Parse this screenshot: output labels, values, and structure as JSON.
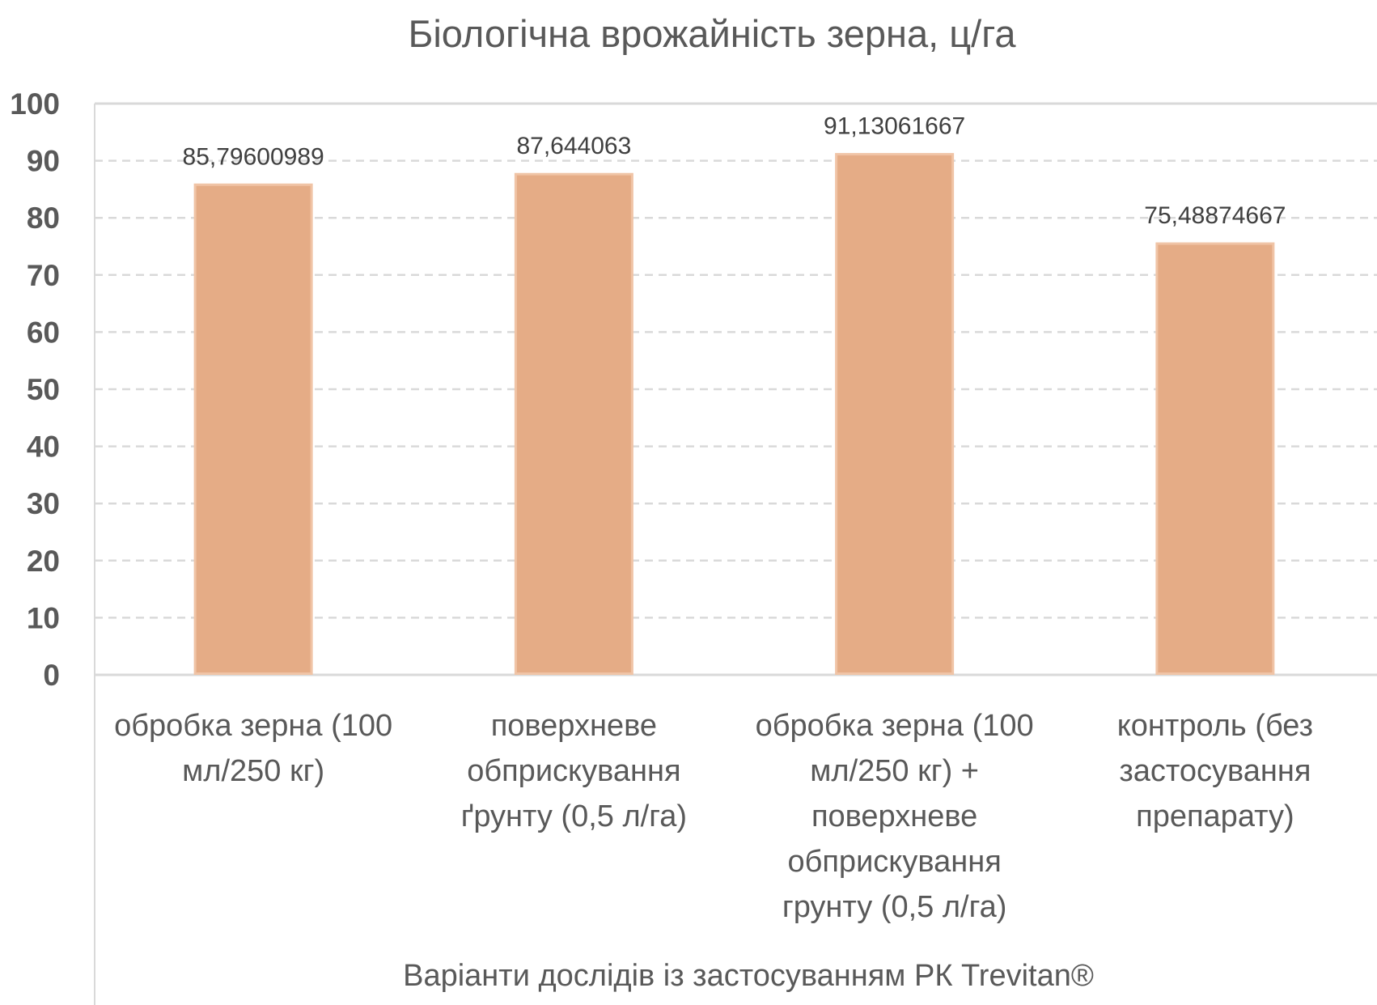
{
  "chart_data": {
    "type": "bar",
    "title": "Біологічна врожайність зерна, ц/га",
    "xlabel": "Варіанти дослідів із застосуванням РК Trevitan®",
    "ylabel": "",
    "ylim": [
      0,
      100
    ],
    "yticks": [
      "0",
      "10",
      "20",
      "30",
      "40",
      "50",
      "60",
      "70",
      "80",
      "90",
      "100"
    ],
    "grid": true,
    "categories": [
      [
        "обробка зерна (100",
        "мл/250 кг)"
      ],
      [
        "поверхневе",
        "обприскування",
        "ґрунту (0,5 л/га)"
      ],
      [
        "обробка зерна (100",
        "мл/250 кг) +",
        "поверхневе",
        "обприскування",
        "грунту (0,5 л/га)"
      ],
      [
        "контроль (без",
        "застосування",
        "препарату)"
      ]
    ],
    "values": [
      85.79600989,
      87.644063,
      91.13061667,
      75.48874667
    ],
    "data_labels": [
      "85,79600989",
      "87,644063",
      "91,13061667",
      "75,48874667"
    ],
    "bar_color": "#E5AC86",
    "bar_edge_color": "#F0C4A6"
  }
}
